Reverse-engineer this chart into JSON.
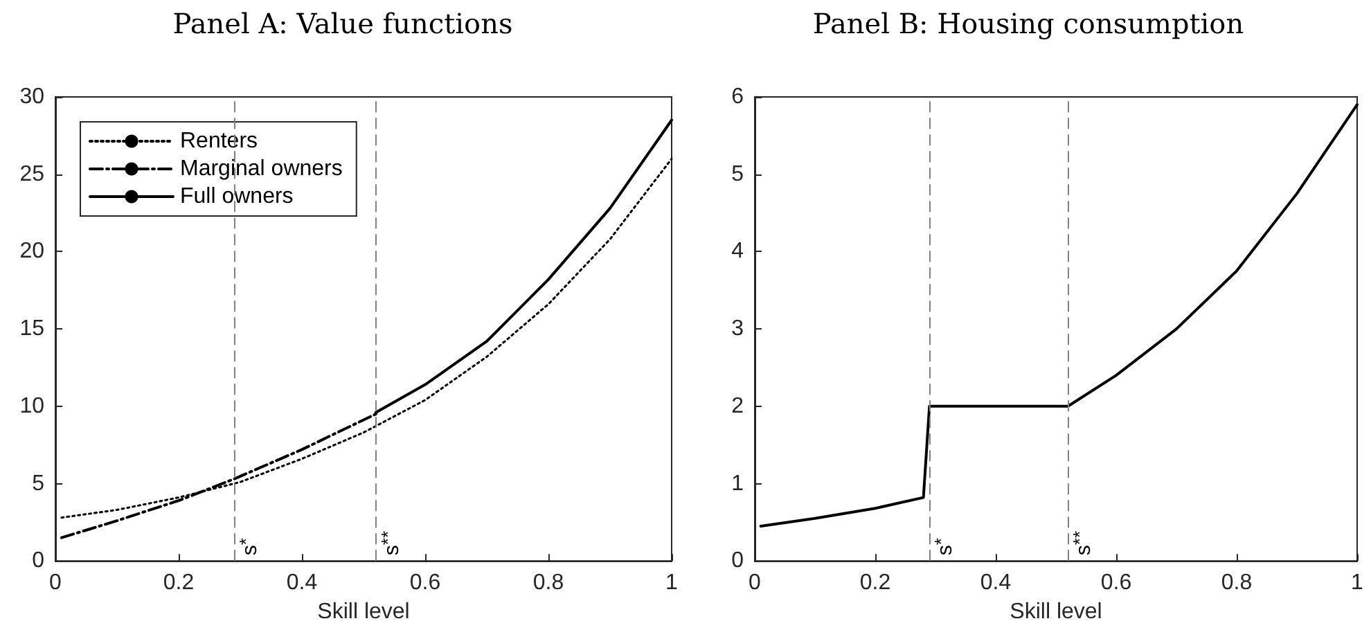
{
  "chart_data": [
    {
      "type": "line",
      "title": "Panel A: Value functions",
      "xlabel": "Skill level",
      "xlim": [
        0,
        1
      ],
      "xticks": [
        0,
        0.2,
        0.4,
        0.6,
        0.8,
        1
      ],
      "ylim": [
        0,
        30
      ],
      "yticks": [
        0,
        5,
        10,
        15,
        20,
        25,
        30
      ],
      "grid": false,
      "legend": "top left",
      "marker": "none",
      "series": [
        {
          "name": "Renters",
          "color": "#000000",
          "line_style": "dotted",
          "x": [
            0.01,
            0.1,
            0.2,
            0.3,
            0.4,
            0.5,
            0.6,
            0.7,
            0.8,
            0.9,
            1.0
          ],
          "values": [
            2.8,
            3.3,
            4.1,
            5.1,
            6.6,
            8.3,
            10.4,
            13.2,
            16.6,
            20.8,
            26.0
          ]
        },
        {
          "name": "Marginal owners",
          "color": "#000000",
          "line_style": "dashdot",
          "x": [
            0.01,
            0.1,
            0.2,
            0.29,
            0.4,
            0.52
          ],
          "values": [
            1.5,
            2.6,
            3.9,
            5.3,
            7.2,
            9.5
          ]
        },
        {
          "name": "Full owners",
          "color": "#000000",
          "line_style": "solid",
          "x": [
            0.52,
            0.6,
            0.7,
            0.8,
            0.9,
            1.0
          ],
          "values": [
            9.6,
            11.4,
            14.2,
            18.2,
            22.8,
            28.5
          ]
        }
      ],
      "ref_lines": [
        {
          "axis": "x",
          "value": 0.29,
          "label": "s$^{*}$",
          "color": "#808080",
          "line_style": "dashed"
        },
        {
          "axis": "x",
          "value": 0.52,
          "label": "s$^{**}$",
          "color": "#808080",
          "line_style": "dashed"
        }
      ]
    },
    {
      "type": "line",
      "title": "Panel B: Housing consumption",
      "xlabel": "Skill level",
      "xlim": [
        0,
        1
      ],
      "xticks": [
        0,
        0.2,
        0.4,
        0.6,
        0.8,
        1
      ],
      "ylim": [
        0,
        6
      ],
      "yticks": [
        0,
        1,
        2,
        3,
        4,
        5,
        6
      ],
      "grid": false,
      "legend": false,
      "marker": "none",
      "series": [
        {
          "color": "#000000",
          "line_style": "solid",
          "x": [
            0.01,
            0.1,
            0.2,
            0.28,
            0.29,
            0.52,
            0.6,
            0.7,
            0.8,
            0.9,
            1.0
          ],
          "values": [
            0.45,
            0.55,
            0.68,
            0.82,
            2.0,
            2.0,
            2.4,
            3.0,
            3.75,
            4.75,
            5.9
          ]
        }
      ],
      "ref_lines": [
        {
          "axis": "x",
          "value": 0.29,
          "label": "s$^{*}$",
          "color": "#808080",
          "line_style": "dashed"
        },
        {
          "axis": "x",
          "value": 0.52,
          "label": "s$^{**}$",
          "color": "#808080",
          "line_style": "dashed"
        }
      ]
    }
  ]
}
